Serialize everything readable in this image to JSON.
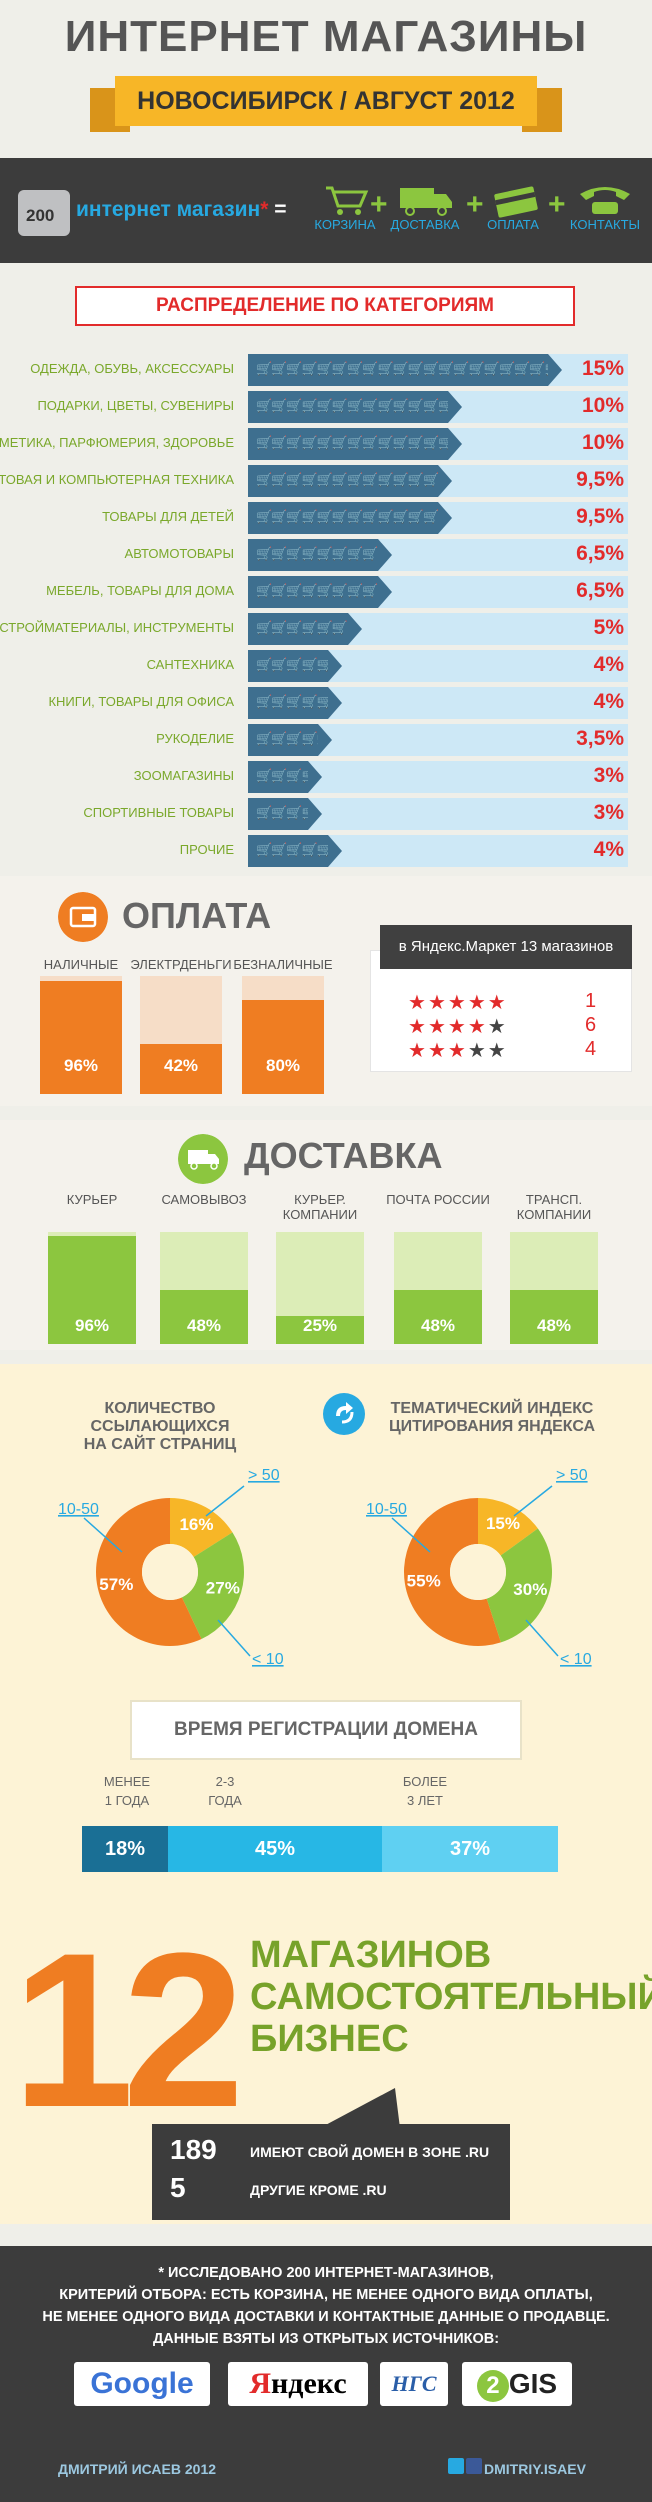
{
  "header": {
    "title": "ИНТЕРНЕТ МАГАЗИНЫ",
    "subtitle": "НОВОСИБИРСК / АВГУСТ 2012"
  },
  "band": {
    "count": "200",
    "text": "интернет магазин",
    "asterisk": "*",
    "equals": "=",
    "items": [
      {
        "label": "КОРЗИНА",
        "icon": "cart-icon"
      },
      {
        "label": "ДОСТАВКА",
        "icon": "truck-icon"
      },
      {
        "label": "ОПЛАТА",
        "icon": "card-icon"
      },
      {
        "label": "КОНТАКТЫ",
        "icon": "phone-icon"
      }
    ],
    "plus": "+"
  },
  "categories": {
    "title": "РАСПРЕДЕЛЕНИЕ ПО КАТЕГОРИЯМ",
    "rows": [
      {
        "label": "ОДЕЖДА, ОБУВЬ, АКСЕССУАРЫ",
        "value": "15%",
        "v": 15
      },
      {
        "label": "ПОДАРКИ, ЦВЕТЫ, СУВЕНИРЫ",
        "value": "10%",
        "v": 10
      },
      {
        "label": "КОСМЕТИКА, ПАРФЮМЕРИЯ, ЗДОРОВЬЕ",
        "value": "10%",
        "v": 10
      },
      {
        "label": "БЫТОВАЯ И КОМПЬЮТЕРНАЯ ТЕХНИКА",
        "value": "9,5%",
        "v": 9.5
      },
      {
        "label": "ТОВАРЫ ДЛЯ ДЕТЕЙ",
        "value": "9,5%",
        "v": 9.5
      },
      {
        "label": "АВТОМОТОВАРЫ",
        "value": "6,5%",
        "v": 6.5
      },
      {
        "label": "МЕБЕЛЬ, ТОВАРЫ ДЛЯ ДОМА",
        "value": "6,5%",
        "v": 6.5
      },
      {
        "label": "СТРОЙМАТЕРИАЛЫ, ИНСТРУМЕНТЫ",
        "value": "5%",
        "v": 5
      },
      {
        "label": "САНТЕХНИКА",
        "value": "4%",
        "v": 4
      },
      {
        "label": "КНИГИ, ТОВАРЫ ДЛЯ ОФИСА",
        "value": "4%",
        "v": 4
      },
      {
        "label": "РУКОДЕЛИЕ",
        "value": "3,5%",
        "v": 3.5
      },
      {
        "label": "ЗООМАГАЗИНЫ",
        "value": "3%",
        "v": 3
      },
      {
        "label": "СПОРТИВНЫЕ ТОВАРЫ",
        "value": "3%",
        "v": 3
      },
      {
        "label": "ПРОЧИЕ",
        "value": "4%",
        "v": 4
      }
    ]
  },
  "payment": {
    "title": "ОПЛАТА",
    "cols": [
      {
        "label": "НАЛИЧНЫЕ",
        "value": "96%",
        "v": 96
      },
      {
        "label": "ЭЛЕКТРДЕНЬГИ",
        "value": "42%",
        "v": 42
      },
      {
        "label": "БЕЗНАЛИЧНЫЕ",
        "value": "80%",
        "v": 80
      }
    ]
  },
  "yandex_market": {
    "title": "в Яндекс.Маркет 13 магазинов",
    "rows": [
      {
        "stars": 5,
        "count": "1"
      },
      {
        "stars": 4,
        "count": "6"
      },
      {
        "stars": 3,
        "count": "4"
      }
    ]
  },
  "delivery": {
    "title": "ДОСТАВКА",
    "cols": [
      {
        "label": "КУРЬЕР",
        "value": "96%",
        "v": 96
      },
      {
        "label": "САМОВЫВОЗ",
        "value": "48%",
        "v": 48
      },
      {
        "label": "КУРЬЕР. КОМПАНИИ",
        "value": "25%",
        "v": 25
      },
      {
        "label": "ПОЧТА РОССИИ",
        "value": "48%",
        "v": 48
      },
      {
        "label": "ТРАНСП. КОМПАНИИ",
        "value": "48%",
        "v": 48
      }
    ]
  },
  "pies": {
    "left": {
      "title_line1": "КОЛИЧЕСТВО ССЫЛАЮЩИХСЯ",
      "title_line2": "НА САЙТ СТРАНИЦ",
      "slices": [
        {
          "label": "10-50",
          "value": "57%",
          "v": 57
        },
        {
          "label": "> 50",
          "value": "16%",
          "v": 16
        },
        {
          "label": "< 10",
          "value": "27%",
          "v": 27
        }
      ]
    },
    "right": {
      "title_line1": "ТЕМАТИЧЕСКИЙ ИНДЕКС",
      "title_line2": "ЦИТИРОВАНИЯ ЯНДЕКСА",
      "slices": [
        {
          "label": "10-50",
          "value": "55%",
          "v": 55
        },
        {
          "label": "> 50",
          "value": "15%",
          "v": 15
        },
        {
          "label": "< 10",
          "value": "30%",
          "v": 30
        }
      ]
    }
  },
  "domain_age": {
    "title": "ВРЕМЯ РЕГИСТРАЦИИ ДОМЕНА",
    "segments": [
      {
        "label1": "МЕНЕЕ",
        "label2": "1 ГОДА",
        "value": "18%",
        "v": 18
      },
      {
        "label1": "2-3",
        "label2": "ГОДА",
        "value": "45%",
        "v": 45
      },
      {
        "label1": "БОЛЕЕ",
        "label2": "3 ЛЕТ",
        "value": "37%",
        "v": 37
      }
    ]
  },
  "independent": {
    "number": "12",
    "line1": "МАГАЗИНОВ",
    "line2": "САМОСТОЯТЕЛЬНЫЙ",
    "line3": "БИЗНЕС"
  },
  "domains": {
    "ru_count": "189",
    "ru_text": "ИМЕЮТ СВОЙ ДОМЕН В ЗОНЕ .RU",
    "other_count": "5",
    "other_text": "ДРУГИЕ  КРОМЕ .RU"
  },
  "footer": {
    "line1": "* ИССЛЕДОВАНО 200 ИНТЕРНЕТ-МАГАЗИНОВ,",
    "line2": "КРИТЕРИЙ ОТБОРА: ЕСТЬ КОРЗИНА, НЕ МЕНЕЕ ОДНОГО ВИДА ОПЛАТЫ,",
    "line3": "НЕ МЕНЕЕ ОДНОГО ВИДА ДОСТАВКИ И КОНТАКТНЫЕ ДАННЫЕ О ПРОДАВЦЕ.",
    "line4": "ДАННЫЕ ВЗЯТЫ ИЗ ОТКРЫТЫХ ИСТОЧНИКОВ:",
    "logos": [
      "Google",
      "Яндекс",
      "НГС",
      "2GIS"
    ],
    "author": "ДМИТРИЙ ИСАЕВ 2012",
    "handle": "DMITRIY.ISAEV"
  },
  "colors": {
    "accent_red": "#e22b2b",
    "orange": "#ef7d22",
    "green": "#8cc63f",
    "blue": "#27a9e1",
    "dark_blue": "#3e6f8f",
    "yellow": "#f7b627"
  },
  "chart_data": [
    {
      "type": "bar",
      "title": "РАСПРЕДЕЛЕНИЕ ПО КАТЕГОРИЯМ",
      "categories": [
        "ОДЕЖДА, ОБУВЬ, АКСЕССУАРЫ",
        "ПОДАРКИ, ЦВЕТЫ, СУВЕНИРЫ",
        "КОСМЕТИКА, ПАРФЮМЕРИЯ, ЗДОРОВЬЕ",
        "БЫТОВАЯ И КОМПЬЮТЕРНАЯ ТЕХНИКА",
        "ТОВАРЫ ДЛЯ ДЕТЕЙ",
        "АВТОМОТОВАРЫ",
        "МЕБЕЛЬ, ТОВАРЫ ДЛЯ ДОМА",
        "СТРОЙМАТЕРИАЛЫ, ИНСТРУМЕНТЫ",
        "САНТЕХНИКА",
        "КНИГИ, ТОВАРЫ ДЛЯ ОФИСА",
        "РУКОДЕЛИЕ",
        "ЗООМАГАЗИНЫ",
        "СПОРТИВНЫЕ ТОВАРЫ",
        "ПРОЧИЕ"
      ],
      "values": [
        15,
        10,
        10,
        9.5,
        9.5,
        6.5,
        6.5,
        5,
        4,
        4,
        3.5,
        3,
        3,
        4
      ],
      "orientation": "horizontal"
    },
    {
      "type": "bar",
      "title": "ОПЛАТА",
      "categories": [
        "НАЛИЧНЫЕ",
        "ЭЛЕКТРДЕНЬГИ",
        "БЕЗНАЛИЧНЫЕ"
      ],
      "values": [
        96,
        42,
        80
      ],
      "ylim": [
        0,
        100
      ]
    },
    {
      "type": "bar",
      "title": "ДОСТАВКА",
      "categories": [
        "КУРЬЕР",
        "САМОВЫВОЗ",
        "КУРЬЕР. КОМПАНИИ",
        "ПОЧТА РОССИИ",
        "ТРАНСП. КОМПАНИИ"
      ],
      "values": [
        96,
        48,
        25,
        48,
        48
      ],
      "ylim": [
        0,
        100
      ]
    },
    {
      "type": "pie",
      "title": "КОЛИЧЕСТВО ССЫЛАЮЩИХСЯ НА САЙТ СТРАНИЦ",
      "categories": [
        "10-50",
        "> 50",
        "< 10"
      ],
      "values": [
        57,
        16,
        27
      ]
    },
    {
      "type": "pie",
      "title": "ТЕМАТИЧЕСКИЙ ИНДЕКС ЦИТИРОВАНИЯ ЯНДЕКСА",
      "categories": [
        "10-50",
        "> 50",
        "< 10"
      ],
      "values": [
        55,
        15,
        30
      ]
    },
    {
      "type": "bar",
      "title": "ВРЕМЯ РЕГИСТРАЦИИ ДОМЕНА",
      "categories": [
        "МЕНЕЕ 1 ГОДА",
        "2-3 ГОДА",
        "БОЛЕЕ 3 ЛЕТ"
      ],
      "values": [
        18,
        45,
        37
      ],
      "stacked": true
    }
  ]
}
